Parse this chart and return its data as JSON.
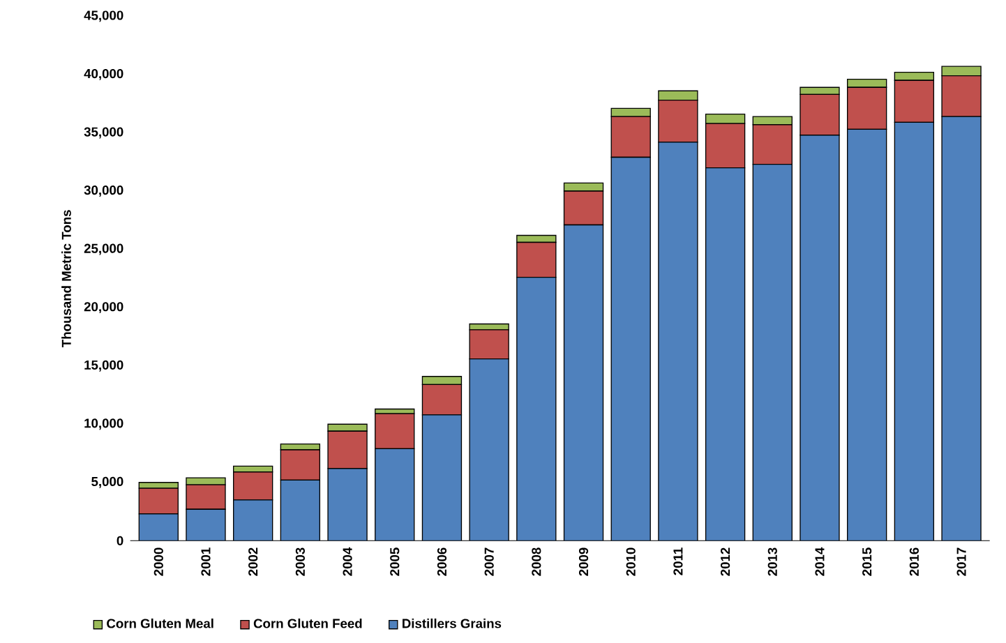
{
  "chart_data": {
    "type": "bar",
    "stacked": true,
    "ylabel": "Thousand Metric Tons",
    "categories": [
      "2000",
      "2001",
      "2002",
      "2003",
      "2004",
      "2005",
      "2006",
      "2007",
      "2008",
      "2009",
      "2010",
      "2011",
      "2012",
      "2013",
      "2014",
      "2015",
      "2016",
      "2017"
    ],
    "series": [
      {
        "name": "Distillers Grains",
        "color": "#4f81bd",
        "values": [
          2300,
          2700,
          3500,
          5200,
          6200,
          7900,
          10800,
          15600,
          22600,
          27100,
          32900,
          34200,
          32000,
          32300,
          34800,
          35300,
          35900,
          36400
        ]
      },
      {
        "name": "Corn Gluten Feed",
        "color": "#c0504d",
        "values": [
          2200,
          2100,
          2400,
          2600,
          3200,
          3000,
          2600,
          2500,
          3000,
          2900,
          3500,
          3600,
          3800,
          3400,
          3500,
          3600,
          3600,
          3500
        ]
      },
      {
        "name": "Corn Gluten Meal",
        "color": "#9bbb59",
        "values": [
          500,
          600,
          500,
          500,
          600,
          400,
          700,
          500,
          600,
          700,
          700,
          800,
          800,
          700,
          600,
          700,
          700,
          800
        ]
      }
    ],
    "ylim": [
      0,
      45000
    ],
    "yticks": [
      {
        "value": 0,
        "label": "0"
      },
      {
        "value": 5000,
        "label": "5,000"
      },
      {
        "value": 10000,
        "label": "10,000"
      },
      {
        "value": 15000,
        "label": "15,000"
      },
      {
        "value": 20000,
        "label": "20,000"
      },
      {
        "value": 25000,
        "label": "25,000"
      },
      {
        "value": 30000,
        "label": "30,000"
      },
      {
        "value": 35000,
        "label": "35,000"
      },
      {
        "value": 40000,
        "label": "40,000"
      },
      {
        "value": 45000,
        "label": "45,000"
      }
    ],
    "grid": false,
    "legend": "bottom left"
  }
}
